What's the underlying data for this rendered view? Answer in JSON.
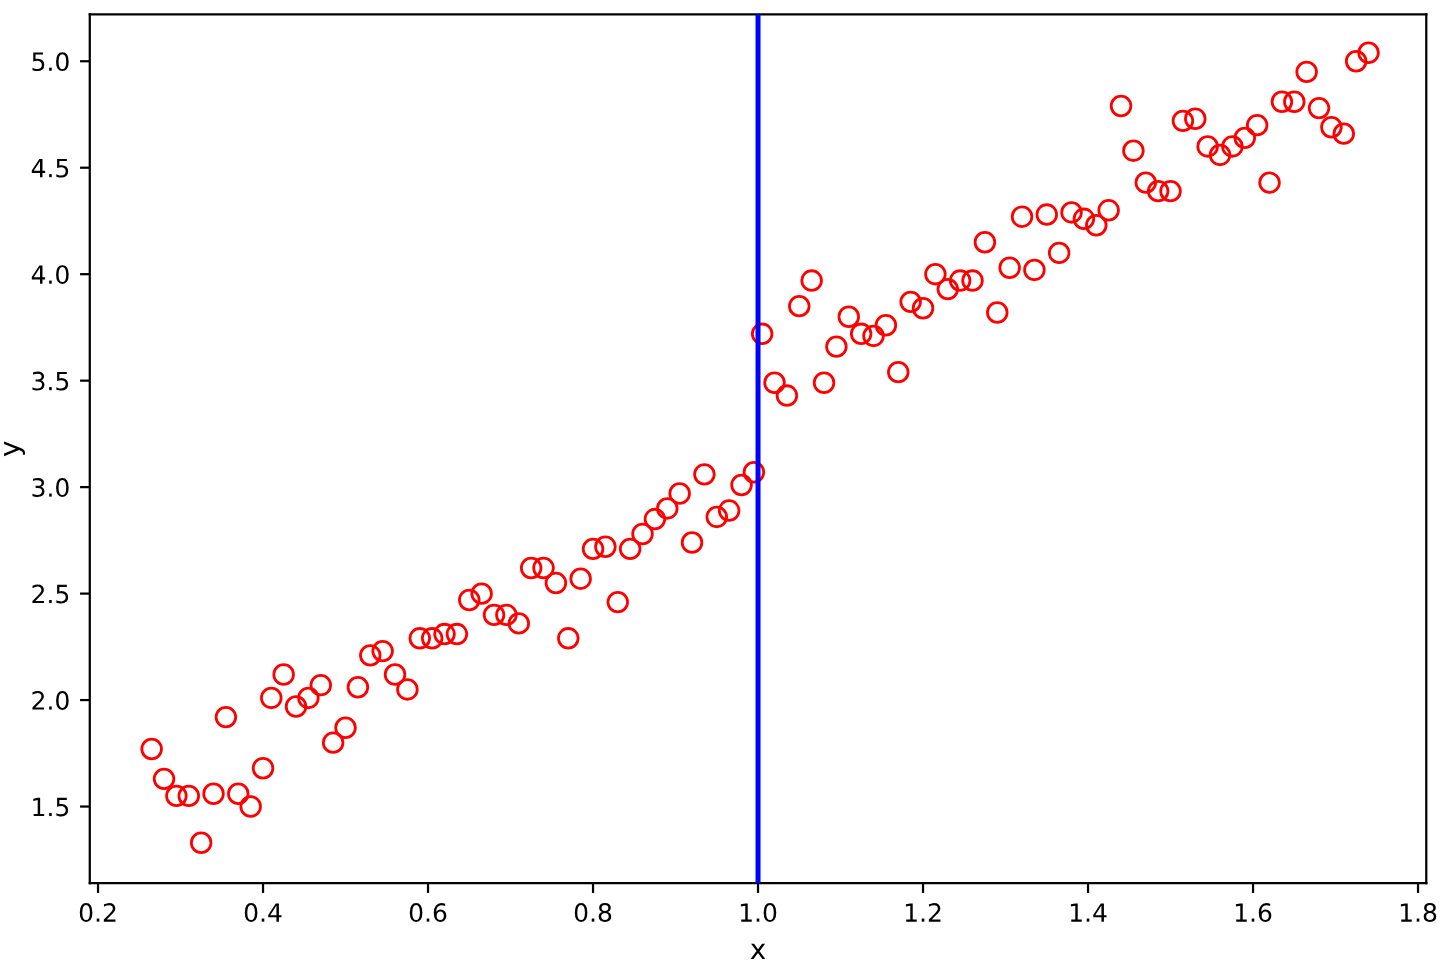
{
  "chart_data": {
    "type": "scatter",
    "xlabel": "x",
    "ylabel": "y",
    "x": [
      0.265,
      0.28,
      0.295,
      0.31,
      0.325,
      0.34,
      0.355,
      0.37,
      0.385,
      0.4,
      0.41,
      0.425,
      0.44,
      0.455,
      0.47,
      0.485,
      0.5,
      0.515,
      0.53,
      0.545,
      0.56,
      0.575,
      0.59,
      0.605,
      0.62,
      0.635,
      0.65,
      0.665,
      0.68,
      0.695,
      0.71,
      0.725,
      0.74,
      0.755,
      0.77,
      0.785,
      0.8,
      0.815,
      0.83,
      0.845,
      0.86,
      0.875,
      0.89,
      0.905,
      0.92,
      0.935,
      0.95,
      0.965,
      0.98,
      0.995,
      1.005,
      1.02,
      1.035,
      1.05,
      1.065,
      1.08,
      1.095,
      1.11,
      1.125,
      1.14,
      1.155,
      1.17,
      1.185,
      1.2,
      1.215,
      1.23,
      1.245,
      1.26,
      1.275,
      1.29,
      1.305,
      1.32,
      1.335,
      1.35,
      1.365,
      1.38,
      1.395,
      1.41,
      1.425,
      1.44,
      1.455,
      1.47,
      1.485,
      1.5,
      1.515,
      1.53,
      1.545,
      1.56,
      1.575,
      1.59,
      1.605,
      1.62,
      1.635,
      1.65,
      1.665,
      1.68,
      1.695,
      1.71,
      1.725,
      1.74
    ],
    "series": [
      {
        "color": "#ff0000",
        "values": [
          1.77,
          1.63,
          1.55,
          1.55,
          1.33,
          1.56,
          1.92,
          1.56,
          1.5,
          1.68,
          2.01,
          2.12,
          1.97,
          2.01,
          2.07,
          1.8,
          1.87,
          2.06,
          2.21,
          2.23,
          2.12,
          2.05,
          2.29,
          2.29,
          2.31,
          2.31,
          2.47,
          2.5,
          2.4,
          2.4,
          2.36,
          2.62,
          2.62,
          2.55,
          2.29,
          2.57,
          2.71,
          2.72,
          2.46,
          2.71,
          2.78,
          2.85,
          2.9,
          2.97,
          2.74,
          3.06,
          2.86,
          2.89,
          3.01,
          3.07,
          3.72,
          3.49,
          3.43,
          3.85,
          3.97,
          3.49,
          3.66,
          3.8,
          3.72,
          3.71,
          3.76,
          3.54,
          3.87,
          3.84,
          4.0,
          3.93,
          3.97,
          3.97,
          4.15,
          3.82,
          4.03,
          4.27,
          4.02,
          4.28,
          4.1,
          4.29,
          4.26,
          4.23,
          4.3,
          4.79,
          4.58,
          4.43,
          4.39,
          4.39,
          4.72,
          4.73,
          4.6,
          4.56,
          4.6,
          4.64,
          4.7,
          4.43,
          4.81,
          4.81,
          4.95,
          4.78,
          4.69,
          4.66,
          5.0,
          5.04
        ]
      }
    ],
    "marker": "circle",
    "xlim": [
      0.19,
      1.81
    ],
    "xticks": [
      0.2,
      0.4,
      0.6,
      0.8,
      {
        "value": 1,
        "label": "1.0"
      },
      1.2,
      1.4,
      1.6,
      1.8
    ],
    "ylim": [
      1.14,
      5.22
    ],
    "yticks": [
      1.5,
      {
        "value": 2,
        "label": "2.0"
      },
      2.5,
      {
        "value": 3,
        "label": "3.0"
      },
      3.5,
      {
        "value": 4,
        "label": "4.0"
      },
      4.5,
      {
        "value": 5,
        "label": "5.0"
      }
    ],
    "ref_lines": [
      {
        "axis": "x",
        "value": 1.0,
        "color": "#0000ff"
      }
    ],
    "grid": false
  }
}
